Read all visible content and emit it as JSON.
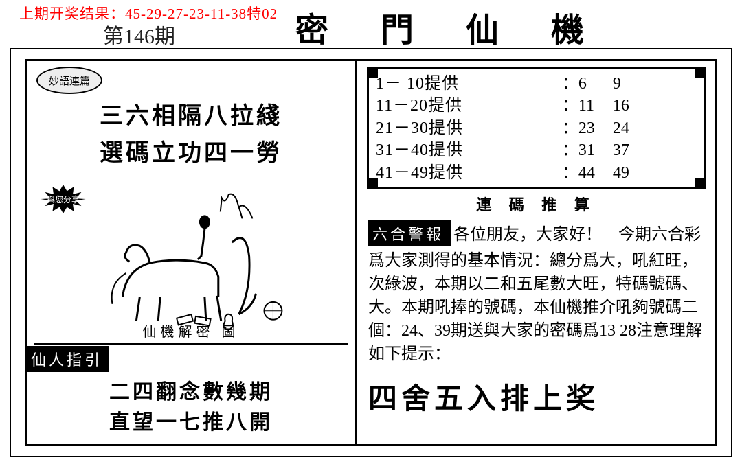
{
  "header": {
    "previous_result_label": "上期开奖结果：",
    "previous_result_numbers": "45-29-27-23-11-38特02",
    "issue": "第146期",
    "title": "密 門 仙 機"
  },
  "colors": {
    "accent_red": "#ff0000",
    "ink": "#000000",
    "paper": "#ffffff"
  },
  "left": {
    "oval_badge": "妙語連篇",
    "couplet_line1": "三六相隔八拉綫",
    "couplet_line2": "選碼立功四一勞",
    "burst_label": "與您分享",
    "illustration_caption": "仙機解密 圖",
    "guide_tag": "仙人指引",
    "verse_line1": "二四翻念數幾期",
    "verse_line2": "直望一七推八開"
  },
  "right": {
    "ranges": [
      {
        "label": "1－ 10提供",
        "v1": "6",
        "v2": "9"
      },
      {
        "label": "11－20提供",
        "v1": "11",
        "v2": "16"
      },
      {
        "label": "21－30提供",
        "v1": "23",
        "v2": "24"
      },
      {
        "label": "31－40提供",
        "v1": "31",
        "v2": "37"
      },
      {
        "label": "41－49提供",
        "v1": "44",
        "v2": "49"
      }
    ],
    "ranges_caption": "連 碼 推 算",
    "alert_tag": "六合警報",
    "alert_body": "各位朋友，大家好！　今期六合彩爲大家測得的基本情況：總分爲大，吼紅旺，次綠波，本期以二和五尾數大旺，特碼號碼、大。本期吼捧的號碼，本仙機推介吼夠號碼二個：24、39期送與大家的密碼爲13 28注意理解如下提示：",
    "slogan": "四舍五入排上奖"
  }
}
